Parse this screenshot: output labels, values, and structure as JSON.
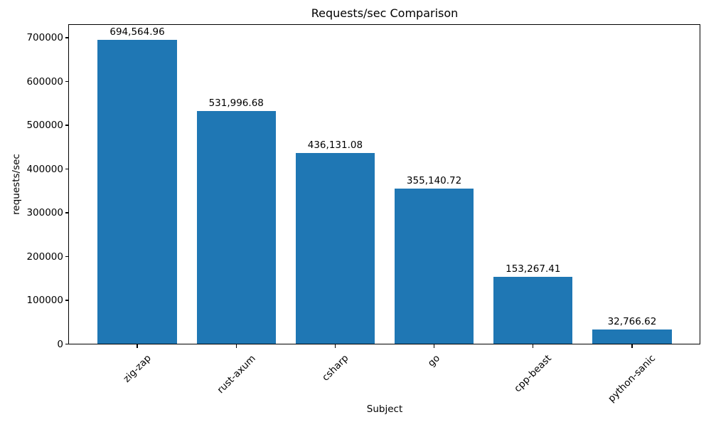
{
  "chart_data": {
    "type": "bar",
    "title": "Requests/sec Comparison",
    "xlabel": "Subject",
    "ylabel": "requests/sec",
    "categories": [
      "zig-zap",
      "rust-axum",
      "csharp",
      "go",
      "cpp-beast",
      "python-sanic"
    ],
    "values": [
      694564.96,
      531996.68,
      436131.08,
      355140.72,
      153267.41,
      32766.62
    ],
    "value_labels": [
      "694,564.96",
      "531,996.68",
      "436,131.08",
      "355,140.72",
      "153,267.41",
      "32,766.62"
    ],
    "bar_color": "#1f77b4",
    "ylim": [
      0,
      729293
    ],
    "yticks": [
      0,
      100000,
      200000,
      300000,
      400000,
      500000,
      600000,
      700000
    ],
    "ytick_labels": [
      "0",
      "100000",
      "200000",
      "300000",
      "400000",
      "500000",
      "600000",
      "700000"
    ],
    "grid": false,
    "legend": null,
    "x_tick_rotation_deg": 45,
    "bar_width_fraction": 0.8
  }
}
